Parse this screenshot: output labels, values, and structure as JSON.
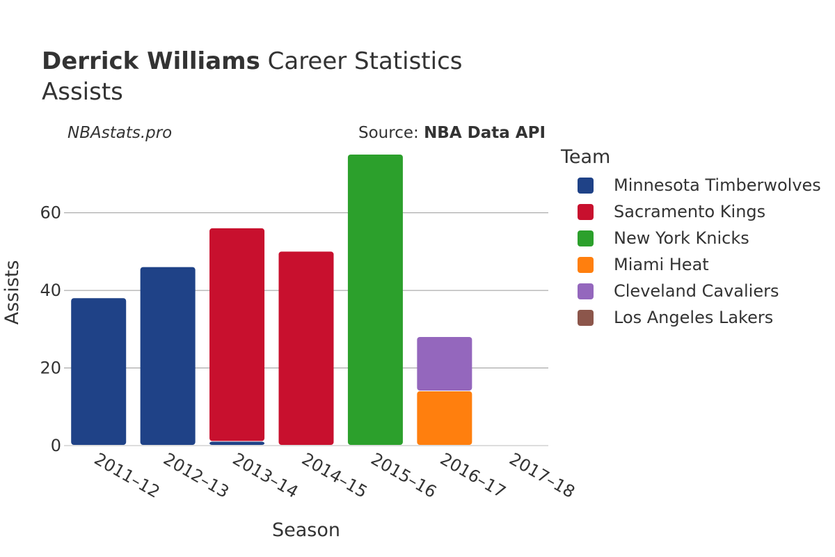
{
  "header": {
    "title_bold": "Derrick Williams",
    "title_rest": " Career Statistics",
    "subtitle": "Assists",
    "credit": "NBAstats.pro",
    "source_prefix": "Source: ",
    "source_name": "NBA Data API"
  },
  "chart_data": {
    "type": "bar",
    "stacked": true,
    "categories": [
      "2011–12",
      "2012–13",
      "2013–14",
      "2014–15",
      "2015–16",
      "2016–17",
      "2017–18"
    ],
    "series": [
      {
        "name": "Minnesota Timberwolves",
        "color": "#1f4287",
        "values": [
          38,
          46,
          1,
          0,
          0,
          0,
          0
        ]
      },
      {
        "name": "Sacramento Kings",
        "color": "#c8102e",
        "values": [
          0,
          0,
          55,
          50,
          0,
          0,
          0
        ]
      },
      {
        "name": "New York Knicks",
        "color": "#2ca02c",
        "values": [
          0,
          0,
          0,
          0,
          75,
          0,
          0
        ]
      },
      {
        "name": "Miami Heat",
        "color": "#ff7f0e",
        "values": [
          0,
          0,
          0,
          0,
          0,
          14,
          0
        ]
      },
      {
        "name": "Cleveland Cavaliers",
        "color": "#9467bd",
        "values": [
          0,
          0,
          0,
          0,
          0,
          14,
          0
        ]
      },
      {
        "name": "Los Angeles Lakers",
        "color": "#8c564b",
        "values": [
          0,
          0,
          0,
          0,
          0,
          0,
          0
        ]
      }
    ],
    "xlabel": "Season",
    "ylabel": "Assists",
    "ylim": [
      0,
      75
    ],
    "yticks": [
      0,
      20,
      40,
      60
    ],
    "grid": true,
    "legend_title": "Team",
    "legend_position": "right"
  }
}
